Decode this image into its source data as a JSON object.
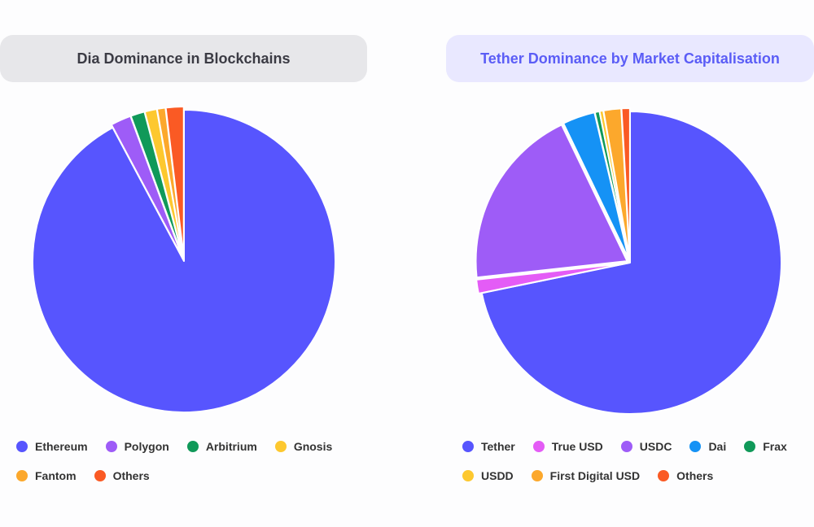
{
  "chart_data": [
    {
      "type": "pie",
      "title": "Dia Dominance in Blockchains",
      "slices": [
        {
          "label": "Ethereum",
          "value": 92.2,
          "color": "#5755fe"
        },
        {
          "label": "Polygon",
          "value": 2.2,
          "color": "#9e5cf7"
        },
        {
          "label": "Arbitrium",
          "value": 1.5,
          "color": "#109959"
        },
        {
          "label": "Gnosis",
          "value": 1.3,
          "color": "#fdc82f"
        },
        {
          "label": "Fantom",
          "value": 0.9,
          "color": "#fca82c"
        },
        {
          "label": "Others",
          "value": 1.9,
          "color": "#fa5a24"
        }
      ],
      "legend": "bottom"
    },
    {
      "type": "pie",
      "title": "Tether Dominance by Market Capitalisation",
      "slices": [
        {
          "label": "Tether",
          "value": 72.5,
          "color": "#5755fe"
        },
        {
          "label": "True USD",
          "value": 1.5,
          "color": "#e45cf6"
        },
        {
          "label": "USDC",
          "value": 19.8,
          "color": "#9e5cf7"
        },
        {
          "label": "Dai",
          "value": 3.5,
          "color": "#1592f5"
        },
        {
          "label": "Frax",
          "value": 0.5,
          "color": "#109959"
        },
        {
          "label": "USDD",
          "value": 0.4,
          "color": "#fdc82f"
        },
        {
          "label": "First Digital USD",
          "value": 1.9,
          "color": "#fca82c"
        },
        {
          "label": "Others",
          "value": 0.9,
          "color": "#fa5a24"
        }
      ],
      "legend": "bottom"
    }
  ],
  "legends": {
    "left": [
      [
        "Ethereum",
        "Polygon",
        "Arbitrium",
        "Gnosis"
      ],
      [
        "Fantom",
        "Others"
      ]
    ],
    "right": [
      [
        "Tether",
        "True USD",
        "USDC",
        "Dai",
        "Frax"
      ],
      [
        "USDD",
        "First Digital USD",
        "Others"
      ]
    ]
  }
}
